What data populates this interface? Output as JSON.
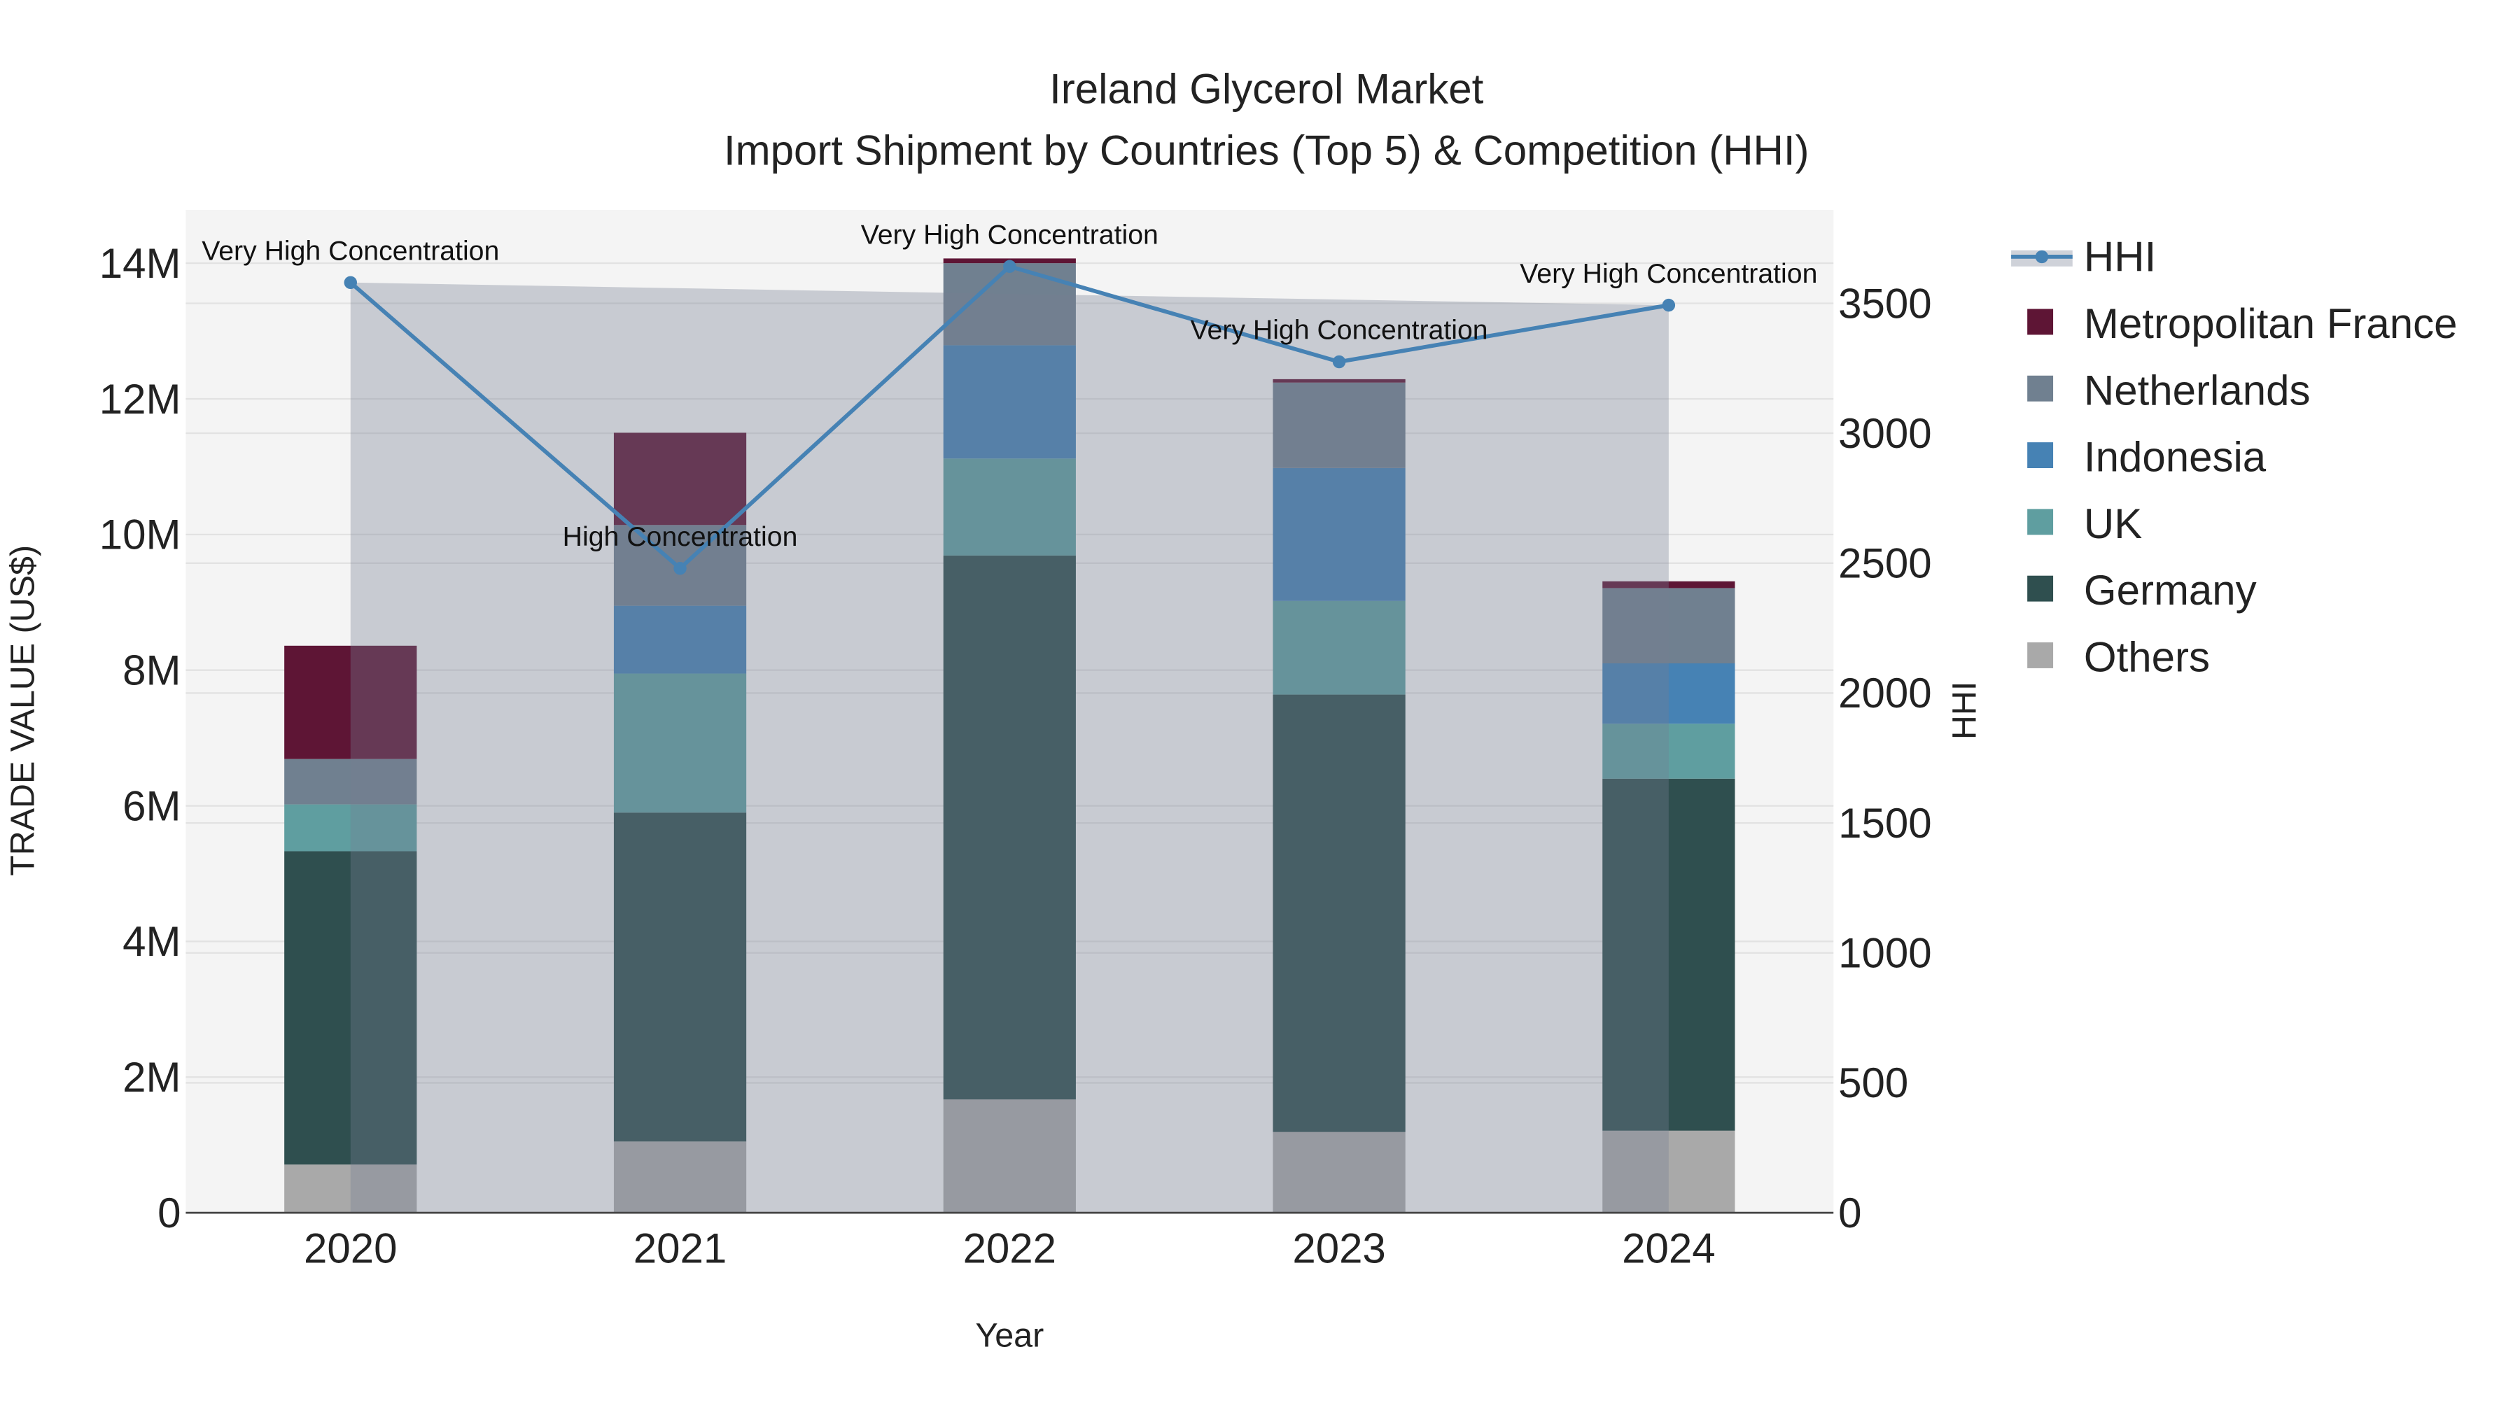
{
  "chart_data": {
    "type": "bar",
    "title": "Ireland Glycerol Market",
    "subtitle": "Import Shipment by Countries (Top 5) & Competition (HHI)",
    "xlabel": "Year",
    "ylabel": "TRADE VALUE (US$)",
    "y2label": "HHI",
    "categories": [
      "2020",
      "2021",
      "2022",
      "2023",
      "2024"
    ],
    "ylim": [
      0,
      14.7
    ],
    "y2lim": [
      0,
      3860
    ],
    "yticks": [
      {
        "v": 0,
        "label": "0"
      },
      {
        "v": 2,
        "label": "2M"
      },
      {
        "v": 4,
        "label": "4M"
      },
      {
        "v": 6,
        "label": "6M"
      },
      {
        "v": 8,
        "label": "8M"
      },
      {
        "v": 10,
        "label": "10M"
      },
      {
        "v": 12,
        "label": "12M"
      },
      {
        "v": 14,
        "label": "14M"
      }
    ],
    "y2ticks": [
      {
        "v": 0,
        "label": "0"
      },
      {
        "v": 500,
        "label": "500"
      },
      {
        "v": 1000,
        "label": "1000"
      },
      {
        "v": 1500,
        "label": "1500"
      },
      {
        "v": 2000,
        "label": "2000"
      },
      {
        "v": 2500,
        "label": "2500"
      },
      {
        "v": 3000,
        "label": "3000"
      },
      {
        "v": 3500,
        "label": "3500"
      }
    ],
    "units": "million US$",
    "series": [
      {
        "name": "Others",
        "color": "#a9a9a9",
        "values": [
          0.71,
          1.05,
          1.67,
          1.19,
          1.21
        ]
      },
      {
        "name": "Germany",
        "color": "#2f4f4f",
        "values": [
          4.62,
          4.85,
          8.02,
          6.45,
          5.19
        ]
      },
      {
        "name": "UK",
        "color": "#5f9ea0",
        "values": [
          0.69,
          2.05,
          1.43,
          1.38,
          0.81
        ]
      },
      {
        "name": "Indonesia",
        "color": "#4682b4",
        "values": [
          0,
          1.0,
          1.67,
          1.96,
          0.89
        ]
      },
      {
        "name": "Netherlands",
        "color": "#708090",
        "values": [
          0.67,
          1.19,
          1.21,
          1.26,
          1.11
        ]
      },
      {
        "name": "Metropolitan France",
        "color": "#5e1535",
        "values": [
          1.67,
          1.36,
          0.07,
          0.05,
          0.1
        ]
      }
    ],
    "hhi": {
      "name": "HHI",
      "color": "#4682b4",
      "values": [
        3580,
        2480,
        3642,
        3275,
        3493
      ],
      "annotations": [
        "Very High Concentration",
        "High Concentration",
        "Very High Concentration",
        "Very High Concentration",
        "Very High Concentration"
      ]
    },
    "legend": [
      "HHI",
      "Metropolitan France",
      "Netherlands",
      "Indonesia",
      "UK",
      "Germany",
      "Others"
    ],
    "legend_position": "right",
    "grid": true
  }
}
